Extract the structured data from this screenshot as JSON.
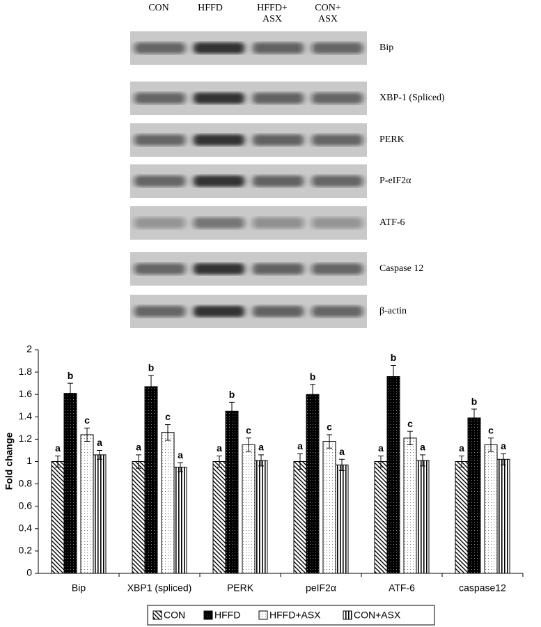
{
  "blot": {
    "lanes": [
      [
        "CON"
      ],
      [
        "HFFD"
      ],
      [
        "HFFD+",
        "ASX"
      ],
      [
        "CON+",
        "ASX"
      ]
    ],
    "proteins": [
      "Bip",
      "XBP-1 (Spliced)",
      "PERK",
      "P-eIF2α",
      "ATF-6",
      "Caspase 12",
      "β-actin"
    ]
  },
  "chart_data": {
    "type": "bar",
    "y_label": "Fold change",
    "categories": [
      "Bip",
      "XBP1 (spliced)",
      "PERK",
      "peIF2α",
      "ATF-6",
      "caspase12"
    ],
    "series": [
      {
        "name": "CON",
        "pattern": "hatch",
        "values": [
          1.0,
          1.0,
          1.0,
          1.0,
          1.0,
          1.0
        ],
        "errors": [
          0.05,
          0.06,
          0.05,
          0.07,
          0.05,
          0.05
        ],
        "letters": [
          "a",
          "a",
          "a",
          "a",
          "a",
          "a"
        ]
      },
      {
        "name": "HFFD",
        "pattern": "dots-dark",
        "values": [
          1.61,
          1.67,
          1.45,
          1.6,
          1.76,
          1.39
        ],
        "errors": [
          0.09,
          0.1,
          0.08,
          0.09,
          0.1,
          0.08
        ],
        "letters": [
          "b",
          "b",
          "b",
          "b",
          "b",
          "b"
        ]
      },
      {
        "name": "HFFD+ASX",
        "pattern": "dots",
        "values": [
          1.24,
          1.26,
          1.15,
          1.18,
          1.21,
          1.15
        ],
        "errors": [
          0.06,
          0.07,
          0.06,
          0.06,
          0.06,
          0.06
        ],
        "letters": [
          "c",
          "c",
          "c",
          "c",
          "c",
          "c"
        ]
      },
      {
        "name": "CON+ASX",
        "pattern": "vertical",
        "values": [
          1.06,
          0.95,
          1.01,
          0.97,
          1.01,
          1.02
        ],
        "errors": [
          0.04,
          0.04,
          0.05,
          0.05,
          0.05,
          0.05
        ],
        "letters": [
          "a",
          "a",
          "a",
          "a",
          "a",
          "a"
        ]
      }
    ],
    "ylim": [
      0,
      2
    ],
    "yticks": [
      0,
      0.2,
      0.4,
      0.6,
      0.8,
      1,
      1.2,
      1.4,
      1.6,
      1.8,
      2
    ]
  }
}
